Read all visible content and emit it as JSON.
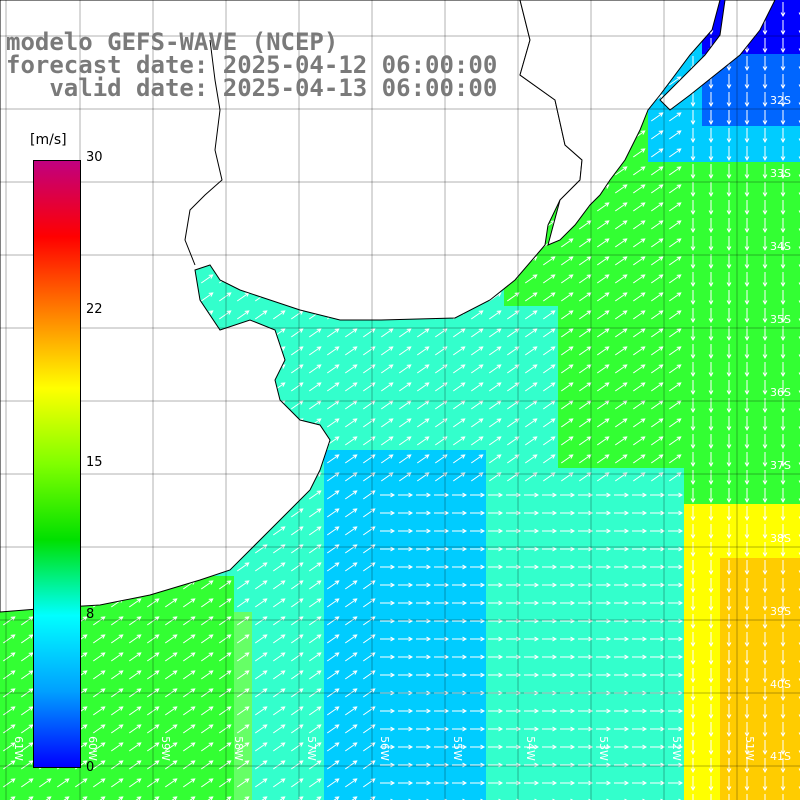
{
  "title": {
    "line1": "modelo GEFS-WAVE (NCEP)",
    "line2": "forecast date: 2025-04-12 06:00:00",
    "line3": "   valid date: 2025-04-13 06:00:00"
  },
  "colorbar": {
    "unit": "[m/s]",
    "ticks": [
      "30",
      "22",
      "15",
      "8",
      "0"
    ],
    "tick_values": [
      30,
      22,
      15,
      8,
      0
    ],
    "colors": [
      "#0000ff",
      "#00a0ff",
      "#00ffff",
      "#00e000",
      "#80ff00",
      "#ffff00",
      "#ff8000",
      "#ff0000",
      "#c00080"
    ]
  },
  "map": {
    "lat_labels": [
      "32S",
      "33S",
      "34S",
      "35S",
      "36S",
      "37S",
      "38S",
      "39S",
      "40S",
      "41S"
    ],
    "lon_labels": [
      "61W",
      "60W",
      "59W",
      "58W",
      "57W",
      "56W",
      "55W",
      "54W",
      "53W",
      "52W",
      "51W"
    ],
    "field_colors": {
      "green": "#33ff33",
      "light_green": "#66ff66",
      "cyan": "#33ffcc",
      "light_blue": "#00ccff",
      "blue": "#0066ff",
      "dark_blue": "#0000ff",
      "yellow": "#ffff00",
      "orange_yellow": "#ffcc00"
    },
    "arrow_color": "#ffffff",
    "coast_color": "#000000",
    "grid_color": "#000000"
  }
}
